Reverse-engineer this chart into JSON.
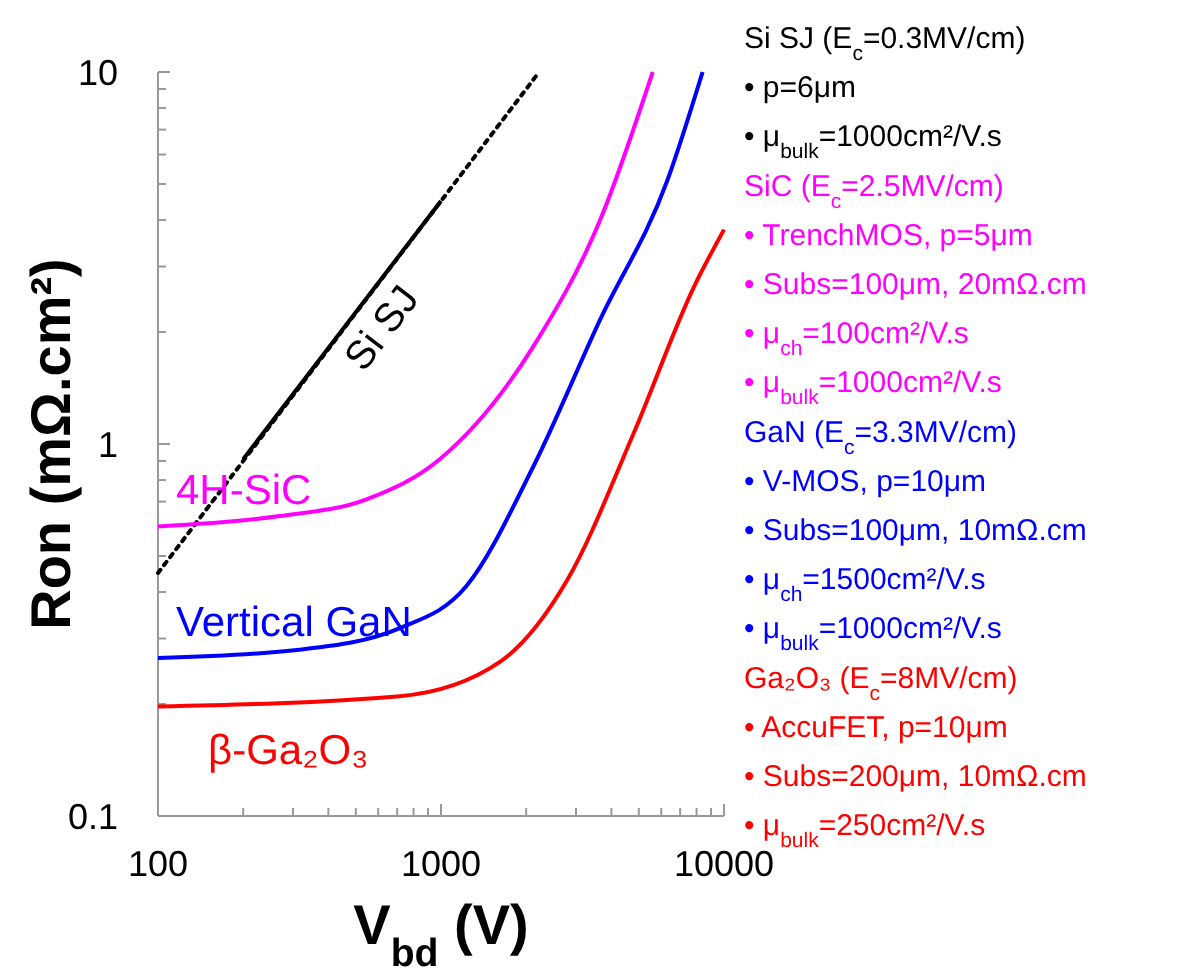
{
  "chart_data": {
    "type": "line",
    "xlabel": "V$_{bd}$ (V)",
    "ylabel": "Ron (mΩ.cm²)",
    "log": "xy",
    "grid": false,
    "marker": "none",
    "xlim": [
      100,
      10000
    ],
    "ylim": [
      0.1,
      10
    ],
    "xticks": [
      100,
      {
        "value": 200,
        "label": null
      },
      {
        "value": 300,
        "label": null
      },
      {
        "value": 400,
        "label": null
      },
      {
        "value": 500,
        "label": null
      },
      {
        "value": 600,
        "label": null
      },
      {
        "value": 700,
        "label": null
      },
      {
        "value": 800,
        "label": null
      },
      {
        "value": 900,
        "label": null
      },
      1000,
      {
        "value": 2000,
        "label": null
      },
      {
        "value": 3000,
        "label": null
      },
      {
        "value": 4000,
        "label": null
      },
      {
        "value": 5000,
        "label": null
      },
      {
        "value": 6000,
        "label": null
      },
      {
        "value": 7000,
        "label": null
      },
      {
        "value": 8000,
        "label": null
      },
      {
        "value": 9000,
        "label": null
      },
      10000
    ],
    "yticks": [
      0.1,
      {
        "value": 0.2,
        "label": null
      },
      {
        "value": 0.3,
        "label": null
      },
      {
        "value": 0.4,
        "label": null
      },
      {
        "value": 0.5,
        "label": null
      },
      {
        "value": 0.6,
        "label": null
      },
      {
        "value": 0.7,
        "label": null
      },
      {
        "value": 0.8,
        "label": null
      },
      {
        "value": 0.9,
        "label": null
      },
      1,
      {
        "value": 2,
        "label": null
      },
      {
        "value": 3,
        "label": null
      },
      {
        "value": 4,
        "label": null
      },
      {
        "value": 5,
        "label": null
      },
      {
        "value": 6,
        "label": null
      },
      {
        "value": 7,
        "label": null
      },
      {
        "value": 8,
        "label": null
      },
      {
        "value": 9,
        "label": null
      },
      10
    ],
    "series": [
      {
        "color": "#000000",
        "line_style": "dotted",
        "x": [
          100,
          2200
        ],
        "values": [
          0.45,
          9.9
        ]
      },
      {
        "name": "Si SJ",
        "color": "#000000",
        "line_style": "solid",
        "x": [
          200,
          1000
        ],
        "values": [
          0.91,
          4.5
        ]
      },
      {
        "name": "4H-SiC",
        "color": "#ff00ff",
        "line_style": "solid",
        "x": [
          100,
          269,
          545,
          990,
          2120,
          3650,
          5600
        ],
        "values": [
          0.6,
          0.64,
          0.71,
          0.91,
          1.83,
          4.0,
          10
        ]
      },
      {
        "name": "Vertical GaN",
        "color": "#0000ff",
        "line_style": "solid",
        "x": [
          100,
          316,
          716,
          1230,
          2120,
          3650,
          6300,
          8400
        ],
        "values": [
          0.266,
          0.28,
          0.32,
          0.415,
          0.87,
          2.16,
          5.1,
          10
        ]
      },
      {
        "name": "β-Ga₂O₃",
        "color": "#ff0000",
        "line_style": "solid",
        "x": [
          100,
          716,
          1620,
          2790,
          4800,
          7840,
          10000
        ],
        "values": [
          0.197,
          0.21,
          0.26,
          0.43,
          1.07,
          2.65,
          3.77
        ]
      }
    ],
    "annotations": [
      "Si SJ (E$_{c}$=0.3MV/cm)",
      "• p=6μm",
      "• μ$_{bulk}$=1000cm²/V.s",
      "SiC (E$_{c}$=2.5MV/cm)",
      "• TrenchMOS, p=5μm",
      "• Subs=100μm, 20mΩ.cm",
      "• μ$_{ch}$=100cm²/V.s",
      "• μ$_{bulk}$=1000cm²/V.s",
      "GaN (E$_{c}$=3.3MV/cm)",
      "• V-MOS, p=10μm",
      "• Subs=100μm, 10mΩ.cm",
      "• μ$_{ch}$=1500cm²/V.s",
      "• μ$_{bulk}$=1000cm²/V.s",
      "Ga₂O₃ (E$_{c}$=8MV/cm)",
      "• AccuFET, p=10μm",
      "• Subs=200μm, 10mΩ.cm",
      "• μ$_{bulk}$=250cm²/V.s"
    ]
  }
}
